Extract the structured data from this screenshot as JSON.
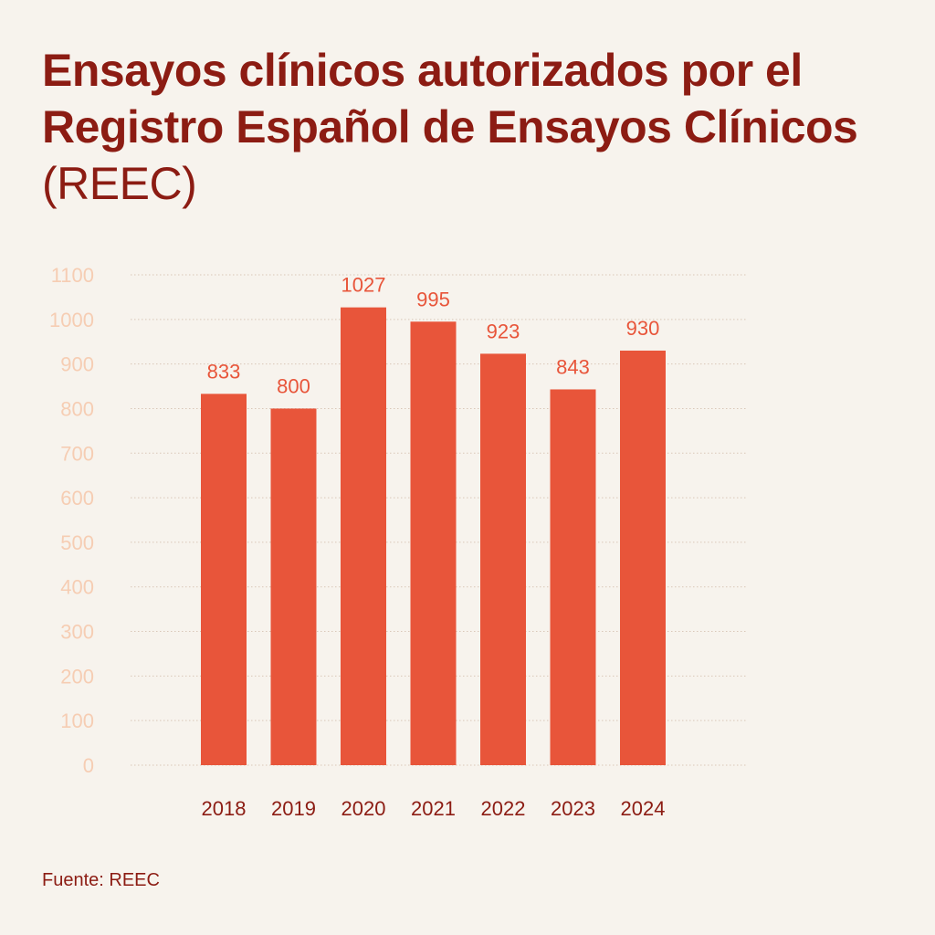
{
  "title": {
    "main": "Ensayos clínicos autorizados por el Registro Español de Ensayos Clínicos",
    "suffix": "(REEC)"
  },
  "source": "Fuente: REEC",
  "colors": {
    "bar": "#e8553a",
    "title": "#8c1c13",
    "tick": "#f6cdb3",
    "value_label": "#e8553a",
    "background": "#f7f3ed"
  },
  "chart_data": {
    "type": "bar",
    "title": "Ensayos clínicos autorizados por el Registro Español de Ensayos Clínicos (REEC)",
    "categories": [
      "2018",
      "2019",
      "2020",
      "2021",
      "2022",
      "2023",
      "2024"
    ],
    "values": [
      833,
      800,
      1027,
      995,
      923,
      843,
      930
    ],
    "data_labels": [
      "833",
      "800",
      "1027",
      "995",
      "923",
      "843",
      "930"
    ],
    "yticks": [
      0,
      100,
      200,
      300,
      400,
      500,
      600,
      700,
      800,
      900,
      1000,
      1100
    ],
    "ylim": [
      0,
      1100
    ],
    "xlabel": "",
    "ylabel": "",
    "grid": true,
    "legend": "none"
  }
}
